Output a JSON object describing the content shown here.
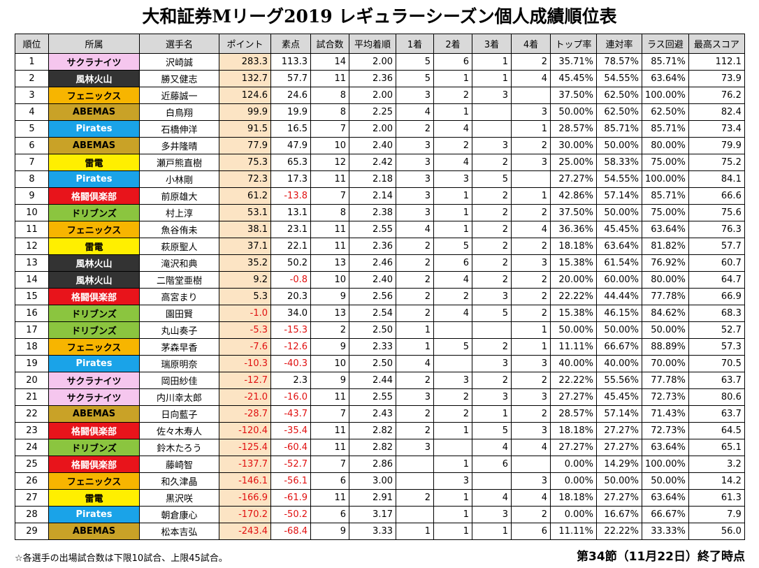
{
  "title": "大和証券Mリーグ2019 レギュラーシーズン個人成績順位表",
  "headers": {
    "rank": "順位",
    "team": "所属",
    "player": "選手名",
    "point": "ポイント",
    "raw": "素点",
    "games": "試合数",
    "avg": "平均着順",
    "first": "1着",
    "second": "2着",
    "third": "3着",
    "fourth": "4着",
    "top_rate": "トップ率",
    "rentai": "連対率",
    "las_avoid": "ラス回避",
    "high_score": "最高スコア"
  },
  "team_colors": {
    "t-sakura": "#f5c6ee",
    "t-furin": "#333333",
    "t-phoenix": "#f7b500",
    "t-abemas": "#c9a227",
    "t-pirates": "#1aa3e8",
    "t-raiden": "#ffef00",
    "t-kakuto": "#e8141b",
    "t-drip": "#8bc53f"
  },
  "rows": [
    {
      "rank": "1",
      "team": "サクラナイツ",
      "tc": "t-sakura",
      "name": "沢崎誠",
      "point": "283.3",
      "raw": "113.3",
      "games": "14",
      "avg": "2.00",
      "f1": "5",
      "f2": "6",
      "f3": "1",
      "f4": "2",
      "top": "35.71%",
      "ren": "78.57%",
      "las": "85.71%",
      "high": "112.1"
    },
    {
      "rank": "2",
      "team": "風林火山",
      "tc": "t-furin",
      "name": "勝又健志",
      "point": "132.7",
      "raw": "57.7",
      "games": "11",
      "avg": "2.36",
      "f1": "5",
      "f2": "1",
      "f3": "1",
      "f4": "4",
      "top": "45.45%",
      "ren": "54.55%",
      "las": "63.64%",
      "high": "73.9"
    },
    {
      "rank": "3",
      "team": "フェニックス",
      "tc": "t-phoenix",
      "name": "近藤誠一",
      "point": "124.6",
      "raw": "24.6",
      "games": "8",
      "avg": "2.00",
      "f1": "3",
      "f2": "2",
      "f3": "3",
      "f4": "",
      "top": "37.50%",
      "ren": "62.50%",
      "las": "100.00%",
      "high": "76.2"
    },
    {
      "rank": "4",
      "team": "ABEMAS",
      "tc": "t-abemas",
      "name": "白鳥翔",
      "point": "99.9",
      "raw": "19.9",
      "games": "8",
      "avg": "2.25",
      "f1": "4",
      "f2": "1",
      "f3": "",
      "f4": "3",
      "top": "50.00%",
      "ren": "62.50%",
      "las": "62.50%",
      "high": "82.4"
    },
    {
      "rank": "5",
      "team": "Pirates",
      "tc": "t-pirates",
      "name": "石橋伸洋",
      "point": "91.5",
      "raw": "16.5",
      "games": "7",
      "avg": "2.00",
      "f1": "2",
      "f2": "4",
      "f3": "",
      "f4": "1",
      "top": "28.57%",
      "ren": "85.71%",
      "las": "85.71%",
      "high": "73.4"
    },
    {
      "rank": "6",
      "team": "ABEMAS",
      "tc": "t-abemas",
      "name": "多井隆晴",
      "point": "77.9",
      "raw": "47.9",
      "games": "10",
      "avg": "2.40",
      "f1": "3",
      "f2": "2",
      "f3": "3",
      "f4": "2",
      "top": "30.00%",
      "ren": "50.00%",
      "las": "80.00%",
      "high": "79.9"
    },
    {
      "rank": "7",
      "team": "雷電",
      "tc": "t-raiden",
      "name": "瀬戸熊直樹",
      "point": "75.3",
      "raw": "65.3",
      "games": "12",
      "avg": "2.42",
      "f1": "3",
      "f2": "4",
      "f3": "2",
      "f4": "3",
      "top": "25.00%",
      "ren": "58.33%",
      "las": "75.00%",
      "high": "75.2"
    },
    {
      "rank": "8",
      "team": "Pirates",
      "tc": "t-pirates",
      "name": "小林剛",
      "point": "72.3",
      "raw": "17.3",
      "games": "11",
      "avg": "2.18",
      "f1": "3",
      "f2": "3",
      "f3": "5",
      "f4": "",
      "top": "27.27%",
      "ren": "54.55%",
      "las": "100.00%",
      "high": "84.1"
    },
    {
      "rank": "9",
      "team": "格闘倶楽部",
      "tc": "t-kakuto",
      "name": "前原雄大",
      "point": "61.2",
      "raw": "-13.8",
      "games": "7",
      "avg": "2.14",
      "f1": "3",
      "f2": "1",
      "f3": "2",
      "f4": "1",
      "top": "42.86%",
      "ren": "57.14%",
      "las": "85.71%",
      "high": "66.6"
    },
    {
      "rank": "10",
      "team": "ドリブンズ",
      "tc": "t-drip",
      "name": "村上淳",
      "point": "53.1",
      "raw": "13.1",
      "games": "8",
      "avg": "2.38",
      "f1": "3",
      "f2": "1",
      "f3": "2",
      "f4": "2",
      "top": "37.50%",
      "ren": "50.00%",
      "las": "75.00%",
      "high": "75.6"
    },
    {
      "rank": "11",
      "team": "フェニックス",
      "tc": "t-phoenix",
      "name": "魚谷侑未",
      "point": "38.1",
      "raw": "23.1",
      "games": "11",
      "avg": "2.55",
      "f1": "4",
      "f2": "1",
      "f3": "2",
      "f4": "4",
      "top": "36.36%",
      "ren": "45.45%",
      "las": "63.64%",
      "high": "76.3"
    },
    {
      "rank": "12",
      "team": "雷電",
      "tc": "t-raiden",
      "name": "萩原聖人",
      "point": "37.1",
      "raw": "22.1",
      "games": "11",
      "avg": "2.36",
      "f1": "2",
      "f2": "5",
      "f3": "2",
      "f4": "2",
      "top": "18.18%",
      "ren": "63.64%",
      "las": "81.82%",
      "high": "57.7"
    },
    {
      "rank": "13",
      "team": "風林火山",
      "tc": "t-furin",
      "name": "滝沢和典",
      "point": "35.2",
      "raw": "50.2",
      "games": "13",
      "avg": "2.46",
      "f1": "2",
      "f2": "6",
      "f3": "2",
      "f4": "3",
      "top": "15.38%",
      "ren": "61.54%",
      "las": "76.92%",
      "high": "60.7"
    },
    {
      "rank": "14",
      "team": "風林火山",
      "tc": "t-furin",
      "name": "二階堂亜樹",
      "point": "9.2",
      "raw": "-0.8",
      "games": "10",
      "avg": "2.40",
      "f1": "2",
      "f2": "4",
      "f3": "2",
      "f4": "2",
      "top": "20.00%",
      "ren": "60.00%",
      "las": "80.00%",
      "high": "64.7"
    },
    {
      "rank": "15",
      "team": "格闘倶楽部",
      "tc": "t-kakuto",
      "name": "高宮まり",
      "point": "5.3",
      "raw": "20.3",
      "games": "9",
      "avg": "2.56",
      "f1": "2",
      "f2": "2",
      "f3": "3",
      "f4": "2",
      "top": "22.22%",
      "ren": "44.44%",
      "las": "77.78%",
      "high": "66.9"
    },
    {
      "rank": "16",
      "team": "ドリブンズ",
      "tc": "t-drip",
      "name": "園田賢",
      "point": "-1.0",
      "raw": "34.0",
      "games": "13",
      "avg": "2.54",
      "f1": "2",
      "f2": "4",
      "f3": "5",
      "f4": "2",
      "top": "15.38%",
      "ren": "46.15%",
      "las": "84.62%",
      "high": "68.3"
    },
    {
      "rank": "17",
      "team": "ドリブンズ",
      "tc": "t-drip",
      "name": "丸山奏子",
      "point": "-5.3",
      "raw": "-15.3",
      "games": "2",
      "avg": "2.50",
      "f1": "1",
      "f2": "",
      "f3": "",
      "f4": "1",
      "top": "50.00%",
      "ren": "50.00%",
      "las": "50.00%",
      "high": "52.7"
    },
    {
      "rank": "18",
      "team": "フェニックス",
      "tc": "t-phoenix",
      "name": "茅森早香",
      "point": "-7.6",
      "raw": "-12.6",
      "games": "9",
      "avg": "2.33",
      "f1": "1",
      "f2": "5",
      "f3": "2",
      "f4": "1",
      "top": "11.11%",
      "ren": "66.67%",
      "las": "88.89%",
      "high": "57.3"
    },
    {
      "rank": "19",
      "team": "Pirates",
      "tc": "t-pirates",
      "name": "瑞原明奈",
      "point": "-10.3",
      "raw": "-40.3",
      "games": "10",
      "avg": "2.50",
      "f1": "4",
      "f2": "",
      "f3": "3",
      "f4": "3",
      "top": "40.00%",
      "ren": "40.00%",
      "las": "70.00%",
      "high": "70.5"
    },
    {
      "rank": "20",
      "team": "サクラナイツ",
      "tc": "t-sakura",
      "name": "岡田紗佳",
      "point": "-12.7",
      "raw": "2.3",
      "games": "9",
      "avg": "2.44",
      "f1": "2",
      "f2": "3",
      "f3": "2",
      "f4": "2",
      "top": "22.22%",
      "ren": "55.56%",
      "las": "77.78%",
      "high": "63.7"
    },
    {
      "rank": "21",
      "team": "サクラナイツ",
      "tc": "t-sakura",
      "name": "内川幸太郎",
      "point": "-21.0",
      "raw": "-16.0",
      "games": "11",
      "avg": "2.55",
      "f1": "3",
      "f2": "2",
      "f3": "3",
      "f4": "3",
      "top": "27.27%",
      "ren": "45.45%",
      "las": "72.73%",
      "high": "80.6"
    },
    {
      "rank": "22",
      "team": "ABEMAS",
      "tc": "t-abemas",
      "name": "日向藍子",
      "point": "-28.7",
      "raw": "-43.7",
      "games": "7",
      "avg": "2.43",
      "f1": "2",
      "f2": "2",
      "f3": "1",
      "f4": "2",
      "top": "28.57%",
      "ren": "57.14%",
      "las": "71.43%",
      "high": "63.7"
    },
    {
      "rank": "23",
      "team": "格闘倶楽部",
      "tc": "t-kakuto",
      "name": "佐々木寿人",
      "point": "-120.4",
      "raw": "-35.4",
      "games": "11",
      "avg": "2.82",
      "f1": "2",
      "f2": "1",
      "f3": "5",
      "f4": "3",
      "top": "18.18%",
      "ren": "27.27%",
      "las": "72.73%",
      "high": "64.5"
    },
    {
      "rank": "24",
      "team": "ドリブンズ",
      "tc": "t-drip",
      "name": "鈴木たろう",
      "point": "-125.4",
      "raw": "-60.4",
      "games": "11",
      "avg": "2.82",
      "f1": "3",
      "f2": "",
      "f3": "4",
      "f4": "4",
      "top": "27.27%",
      "ren": "27.27%",
      "las": "63.64%",
      "high": "65.1"
    },
    {
      "rank": "25",
      "team": "格闘倶楽部",
      "tc": "t-kakuto",
      "name": "藤崎智",
      "point": "-137.7",
      "raw": "-52.7",
      "games": "7",
      "avg": "2.86",
      "f1": "",
      "f2": "1",
      "f3": "6",
      "f4": "",
      "top": "0.00%",
      "ren": "14.29%",
      "las": "100.00%",
      "high": "3.2"
    },
    {
      "rank": "26",
      "team": "フェニックス",
      "tc": "t-phoenix",
      "name": "和久津晶",
      "point": "-146.1",
      "raw": "-56.1",
      "games": "6",
      "avg": "3.00",
      "f1": "",
      "f2": "3",
      "f3": "",
      "f4": "3",
      "top": "0.00%",
      "ren": "50.00%",
      "las": "50.00%",
      "high": "14.2"
    },
    {
      "rank": "27",
      "team": "雷電",
      "tc": "t-raiden",
      "name": "黒沢咲",
      "point": "-166.9",
      "raw": "-61.9",
      "games": "11",
      "avg": "2.91",
      "f1": "2",
      "f2": "1",
      "f3": "4",
      "f4": "4",
      "top": "18.18%",
      "ren": "27.27%",
      "las": "63.64%",
      "high": "61.3"
    },
    {
      "rank": "28",
      "team": "Pirates",
      "tc": "t-pirates",
      "name": "朝倉康心",
      "point": "-170.2",
      "raw": "-50.2",
      "games": "6",
      "avg": "3.17",
      "f1": "",
      "f2": "1",
      "f3": "3",
      "f4": "2",
      "top": "0.00%",
      "ren": "16.67%",
      "las": "66.67%",
      "high": "7.9"
    },
    {
      "rank": "29",
      "team": "ABEMAS",
      "tc": "t-abemas",
      "name": "松本吉弘",
      "point": "-243.4",
      "raw": "-68.4",
      "games": "9",
      "avg": "3.33",
      "f1": "1",
      "f2": "1",
      "f3": "1",
      "f4": "6",
      "top": "11.11%",
      "ren": "22.22%",
      "las": "33.33%",
      "high": "56.0"
    }
  ],
  "footer": {
    "note": "☆各選手の出場試合数は下限10試合、上限45試合。",
    "status": "第34節（11月22日）終了時点"
  }
}
